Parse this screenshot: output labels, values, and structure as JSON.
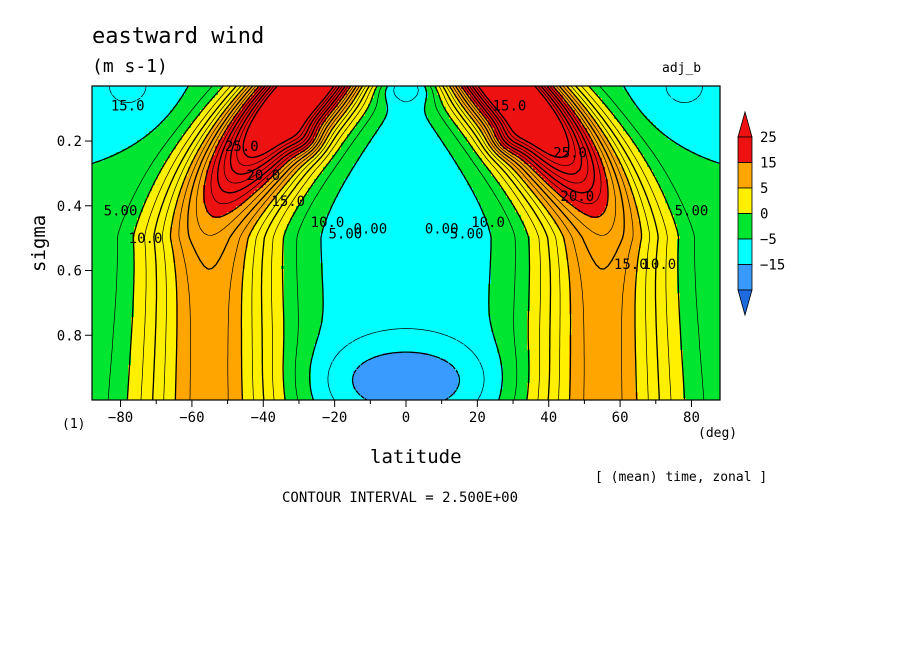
{
  "title": "eastward wind",
  "units": "(m s-1)",
  "run_label": "adj_b",
  "panel_label": "(1)",
  "x_axis": {
    "label": "latitude",
    "unit": "(deg)"
  },
  "y_axis": {
    "label": "sigma"
  },
  "averaging_note": "[ (mean) time, zonal ]",
  "contour_note": "CONTOUR INTERVAL = 2.500E+00",
  "colors": {
    "lt_-15": "#1e6be0",
    "-15_-5": "#3a9bff",
    "-5_0": "#00ffff",
    "0_5": "#00e630",
    "5_15": "#fff000",
    "15_25": "#ffa500",
    "gt_25": "#ee1111"
  },
  "chart_data": {
    "type": "heatmap",
    "title": "eastward wind",
    "xlabel": "latitude",
    "ylabel": "sigma",
    "xlim": [
      -88,
      88
    ],
    "ylim": [
      1.0,
      0.03
    ],
    "x_ticks": [
      -80,
      -60,
      -40,
      -20,
      0,
      20,
      40,
      60,
      80
    ],
    "y_ticks": [
      0.2,
      0.4,
      0.6,
      0.8
    ],
    "contour_interval": 2.5,
    "colorbar": {
      "levels": [
        -15,
        -5,
        0,
        5,
        15,
        25
      ],
      "labels": [
        "25",
        "15",
        "5",
        "0",
        "−5",
        "−15"
      ]
    },
    "contour_labels": [
      {
        "text": "15.0",
        "lat": -78,
        "sigma": 0.09
      },
      {
        "text": "25.0",
        "lat": -46,
        "sigma": 0.215
      },
      {
        "text": "20.0",
        "lat": -40,
        "sigma": 0.305
      },
      {
        "text": "15.0",
        "lat": -33,
        "sigma": 0.385
      },
      {
        "text": "10.0",
        "lat": -22,
        "sigma": 0.45
      },
      {
        "text": "5.00",
        "lat": -17,
        "sigma": 0.485
      },
      {
        "text": "0.00",
        "lat": -10,
        "sigma": 0.47
      },
      {
        "text": "5.00",
        "lat": -80,
        "sigma": 0.415
      },
      {
        "text": "10.0",
        "lat": -73,
        "sigma": 0.5
      },
      {
        "text": "0.00",
        "lat": 10,
        "sigma": 0.47
      },
      {
        "text": "5.00",
        "lat": 17,
        "sigma": 0.485
      },
      {
        "text": "10.0",
        "lat": 23,
        "sigma": 0.45
      },
      {
        "text": "15.0",
        "lat": 29,
        "sigma": 0.09
      },
      {
        "text": "25.0",
        "lat": 46,
        "sigma": 0.235
      },
      {
        "text": "20.0",
        "lat": 48,
        "sigma": 0.37
      },
      {
        "text": "15.0",
        "lat": 63,
        "sigma": 0.58
      },
      {
        "text": "10.0",
        "lat": 71,
        "sigma": 0.58
      },
      {
        "text": "5.00",
        "lat": 80,
        "sigma": 0.415
      }
    ]
  }
}
